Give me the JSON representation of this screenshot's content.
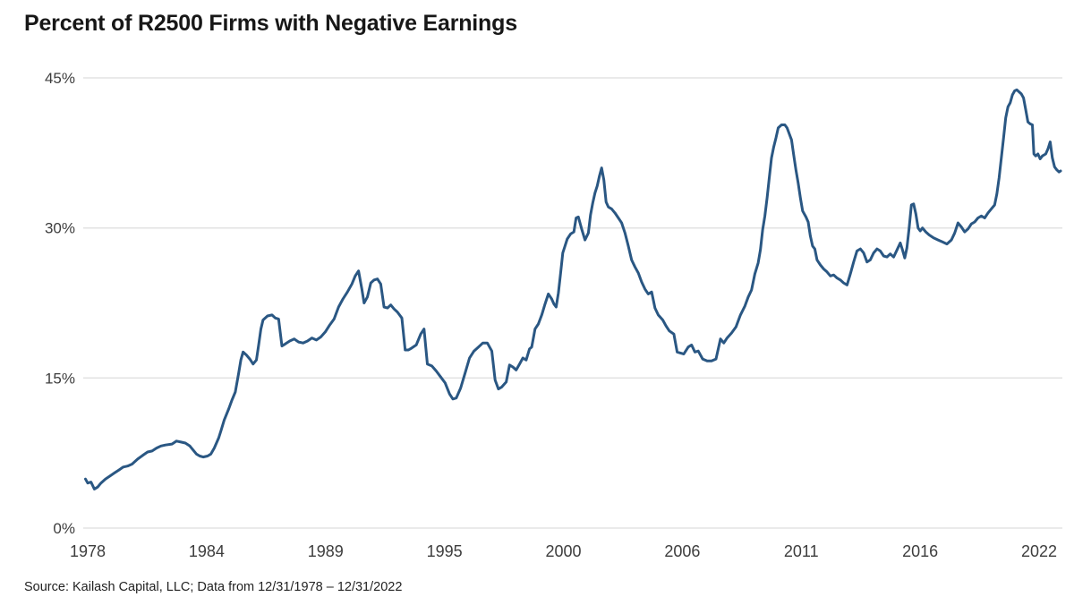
{
  "page": {
    "title": "Percent of R2500 Firms with Negative Earnings",
    "source": "Source: Kailash Capital, LLC; Data from 12/31/1978 – 12/31/2022"
  },
  "chart_data": {
    "type": "line",
    "title": "Percent of R2500 Firms with Negative Earnings",
    "series_name": "Percent of R2500 firms with negative earnings",
    "xlabel": "",
    "ylabel": "",
    "grid": "horizontal",
    "legend": "none",
    "line_color": "#2a5783",
    "grid_color": "#e3e3e3",
    "ylim": [
      0,
      45
    ],
    "xlim": [
      1978.9,
      2023.0
    ],
    "yticks": {
      "values": [
        0,
        15,
        30,
        45
      ],
      "labels": [
        "0%",
        "15%",
        "30%",
        "45%"
      ]
    },
    "xticks": {
      "labels": [
        "1978",
        "1984",
        "1989",
        "1995",
        "2000",
        "2006",
        "2011",
        "2016",
        "2022"
      ],
      "evenly_spaced": true
    },
    "points": [
      [
        1979.0,
        4.9
      ],
      [
        1979.1,
        4.5
      ],
      [
        1979.25,
        4.6
      ],
      [
        1979.4,
        3.9
      ],
      [
        1979.55,
        4.1
      ],
      [
        1979.7,
        4.5
      ],
      [
        1979.9,
        4.9
      ],
      [
        1980.1,
        5.2
      ],
      [
        1980.3,
        5.5
      ],
      [
        1980.5,
        5.8
      ],
      [
        1980.7,
        6.1
      ],
      [
        1980.9,
        6.2
      ],
      [
        1981.1,
        6.4
      ],
      [
        1981.35,
        6.9
      ],
      [
        1981.6,
        7.3
      ],
      [
        1981.8,
        7.6
      ],
      [
        1982.0,
        7.7
      ],
      [
        1982.2,
        8.0
      ],
      [
        1982.4,
        8.2
      ],
      [
        1982.6,
        8.3
      ],
      [
        1982.9,
        8.4
      ],
      [
        1983.1,
        8.7
      ],
      [
        1983.3,
        8.6
      ],
      [
        1983.5,
        8.5
      ],
      [
        1983.7,
        8.2
      ],
      [
        1983.85,
        7.8
      ],
      [
        1984.0,
        7.4
      ],
      [
        1984.15,
        7.2
      ],
      [
        1984.3,
        7.1
      ],
      [
        1984.5,
        7.2
      ],
      [
        1984.65,
        7.4
      ],
      [
        1984.8,
        8.0
      ],
      [
        1985.0,
        9.0
      ],
      [
        1985.1,
        9.7
      ],
      [
        1985.25,
        10.8
      ],
      [
        1985.45,
        11.9
      ],
      [
        1985.6,
        12.8
      ],
      [
        1985.75,
        13.6
      ],
      [
        1985.9,
        15.5
      ],
      [
        1986.0,
        16.8
      ],
      [
        1986.1,
        17.6
      ],
      [
        1986.25,
        17.3
      ],
      [
        1986.4,
        16.9
      ],
      [
        1986.55,
        16.4
      ],
      [
        1986.7,
        16.8
      ],
      [
        1986.8,
        18.3
      ],
      [
        1986.9,
        19.9
      ],
      [
        1987.0,
        20.8
      ],
      [
        1987.2,
        21.2
      ],
      [
        1987.4,
        21.3
      ],
      [
        1987.55,
        21.0
      ],
      [
        1987.7,
        20.9
      ],
      [
        1987.85,
        18.2
      ],
      [
        1988.0,
        18.4
      ],
      [
        1988.2,
        18.7
      ],
      [
        1988.4,
        18.9
      ],
      [
        1988.6,
        18.6
      ],
      [
        1988.8,
        18.5
      ],
      [
        1989.0,
        18.7
      ],
      [
        1989.2,
        19.0
      ],
      [
        1989.4,
        18.8
      ],
      [
        1989.6,
        19.1
      ],
      [
        1989.8,
        19.6
      ],
      [
        1990.0,
        20.3
      ],
      [
        1990.2,
        20.9
      ],
      [
        1990.4,
        22.1
      ],
      [
        1990.6,
        22.9
      ],
      [
        1990.8,
        23.6
      ],
      [
        1991.0,
        24.4
      ],
      [
        1991.15,
        25.2
      ],
      [
        1991.3,
        25.7
      ],
      [
        1991.45,
        23.9
      ],
      [
        1991.55,
        22.5
      ],
      [
        1991.7,
        23.1
      ],
      [
        1991.85,
        24.5
      ],
      [
        1992.0,
        24.8
      ],
      [
        1992.15,
        24.9
      ],
      [
        1992.3,
        24.4
      ],
      [
        1992.45,
        22.1
      ],
      [
        1992.6,
        22.0
      ],
      [
        1992.75,
        22.3
      ],
      [
        1992.9,
        21.9
      ],
      [
        1993.05,
        21.6
      ],
      [
        1993.25,
        21.0
      ],
      [
        1993.4,
        17.8
      ],
      [
        1993.55,
        17.8
      ],
      [
        1993.7,
        18.0
      ],
      [
        1993.9,
        18.3
      ],
      [
        1994.1,
        19.4
      ],
      [
        1994.25,
        19.9
      ],
      [
        1994.4,
        16.4
      ],
      [
        1994.6,
        16.2
      ],
      [
        1994.8,
        15.7
      ],
      [
        1995.0,
        15.1
      ],
      [
        1995.2,
        14.5
      ],
      [
        1995.4,
        13.4
      ],
      [
        1995.55,
        12.9
      ],
      [
        1995.7,
        13.0
      ],
      [
        1995.9,
        14.0
      ],
      [
        1996.1,
        15.5
      ],
      [
        1996.3,
        17.0
      ],
      [
        1996.5,
        17.7
      ],
      [
        1996.7,
        18.1
      ],
      [
        1996.9,
        18.5
      ],
      [
        1997.1,
        18.5
      ],
      [
        1997.3,
        17.7
      ],
      [
        1997.45,
        14.8
      ],
      [
        1997.6,
        13.9
      ],
      [
        1997.75,
        14.1
      ],
      [
        1997.95,
        14.6
      ],
      [
        1998.1,
        16.3
      ],
      [
        1998.25,
        16.1
      ],
      [
        1998.4,
        15.8
      ],
      [
        1998.55,
        16.4
      ],
      [
        1998.7,
        17.0
      ],
      [
        1998.85,
        16.8
      ],
      [
        1999.0,
        17.9
      ],
      [
        1999.1,
        18.1
      ],
      [
        1999.25,
        19.9
      ],
      [
        1999.4,
        20.4
      ],
      [
        1999.55,
        21.3
      ],
      [
        1999.7,
        22.4
      ],
      [
        1999.85,
        23.4
      ],
      [
        2000.0,
        22.9
      ],
      [
        2000.1,
        22.4
      ],
      [
        2000.2,
        22.1
      ],
      [
        2000.3,
        23.5
      ],
      [
        2000.4,
        25.5
      ],
      [
        2000.5,
        27.5
      ],
      [
        2000.6,
        28.2
      ],
      [
        2000.7,
        28.9
      ],
      [
        2000.85,
        29.4
      ],
      [
        2001.0,
        29.6
      ],
      [
        2001.1,
        31.0
      ],
      [
        2001.2,
        31.1
      ],
      [
        2001.35,
        29.9
      ],
      [
        2001.5,
        28.8
      ],
      [
        2001.65,
        29.5
      ],
      [
        2001.75,
        31.3
      ],
      [
        2001.85,
        32.5
      ],
      [
        2001.95,
        33.5
      ],
      [
        2002.05,
        34.2
      ],
      [
        2002.15,
        35.2
      ],
      [
        2002.25,
        36.0
      ],
      [
        2002.35,
        34.8
      ],
      [
        2002.45,
        32.6
      ],
      [
        2002.55,
        32.1
      ],
      [
        2002.7,
        31.9
      ],
      [
        2002.85,
        31.5
      ],
      [
        2003.0,
        31.0
      ],
      [
        2003.15,
        30.5
      ],
      [
        2003.3,
        29.5
      ],
      [
        2003.45,
        28.2
      ],
      [
        2003.6,
        26.8
      ],
      [
        2003.75,
        26.1
      ],
      [
        2003.9,
        25.5
      ],
      [
        2004.05,
        24.6
      ],
      [
        2004.2,
        23.9
      ],
      [
        2004.35,
        23.4
      ],
      [
        2004.5,
        23.6
      ],
      [
        2004.65,
        22.0
      ],
      [
        2004.8,
        21.3
      ],
      [
        2005.0,
        20.8
      ],
      [
        2005.15,
        20.2
      ],
      [
        2005.3,
        19.7
      ],
      [
        2005.5,
        19.4
      ],
      [
        2005.65,
        17.6
      ],
      [
        2005.8,
        17.5
      ],
      [
        2005.95,
        17.4
      ],
      [
        2006.15,
        18.1
      ],
      [
        2006.3,
        18.3
      ],
      [
        2006.45,
        17.6
      ],
      [
        2006.6,
        17.7
      ],
      [
        2006.8,
        16.9
      ],
      [
        2007.0,
        16.7
      ],
      [
        2007.2,
        16.7
      ],
      [
        2007.4,
        16.9
      ],
      [
        2007.6,
        18.9
      ],
      [
        2007.75,
        18.5
      ],
      [
        2007.9,
        19.0
      ],
      [
        2008.1,
        19.5
      ],
      [
        2008.3,
        20.1
      ],
      [
        2008.5,
        21.3
      ],
      [
        2008.7,
        22.2
      ],
      [
        2008.85,
        23.1
      ],
      [
        2009.0,
        23.8
      ],
      [
        2009.15,
        25.4
      ],
      [
        2009.3,
        26.5
      ],
      [
        2009.4,
        27.8
      ],
      [
        2009.5,
        29.8
      ],
      [
        2009.6,
        31.2
      ],
      [
        2009.7,
        33.0
      ],
      [
        2009.8,
        35.0
      ],
      [
        2009.9,
        37.0
      ],
      [
        2010.0,
        38.1
      ],
      [
        2010.1,
        39.0
      ],
      [
        2010.2,
        40.0
      ],
      [
        2010.35,
        40.3
      ],
      [
        2010.5,
        40.3
      ],
      [
        2010.6,
        40.0
      ],
      [
        2010.7,
        39.4
      ],
      [
        2010.8,
        38.8
      ],
      [
        2010.9,
        37.3
      ],
      [
        2011.0,
        35.8
      ],
      [
        2011.1,
        34.5
      ],
      [
        2011.2,
        33.0
      ],
      [
        2011.3,
        31.7
      ],
      [
        2011.45,
        31.1
      ],
      [
        2011.55,
        30.6
      ],
      [
        2011.65,
        29.2
      ],
      [
        2011.75,
        28.2
      ],
      [
        2011.85,
        27.9
      ],
      [
        2011.95,
        26.8
      ],
      [
        2012.1,
        26.3
      ],
      [
        2012.25,
        25.9
      ],
      [
        2012.4,
        25.6
      ],
      [
        2012.55,
        25.2
      ],
      [
        2012.7,
        25.3
      ],
      [
        2012.85,
        25.0
      ],
      [
        2013.0,
        24.8
      ],
      [
        2013.15,
        24.5
      ],
      [
        2013.3,
        24.3
      ],
      [
        2013.45,
        25.4
      ],
      [
        2013.6,
        26.6
      ],
      [
        2013.75,
        27.7
      ],
      [
        2013.9,
        27.9
      ],
      [
        2014.05,
        27.5
      ],
      [
        2014.2,
        26.6
      ],
      [
        2014.35,
        26.8
      ],
      [
        2014.5,
        27.5
      ],
      [
        2014.65,
        27.9
      ],
      [
        2014.8,
        27.7
      ],
      [
        2014.95,
        27.2
      ],
      [
        2015.1,
        27.1
      ],
      [
        2015.25,
        27.4
      ],
      [
        2015.4,
        27.1
      ],
      [
        2015.55,
        27.8
      ],
      [
        2015.7,
        28.5
      ],
      [
        2015.8,
        27.8
      ],
      [
        2015.9,
        27.0
      ],
      [
        2016.0,
        28.0
      ],
      [
        2016.1,
        30.0
      ],
      [
        2016.2,
        32.3
      ],
      [
        2016.3,
        32.4
      ],
      [
        2016.4,
        31.4
      ],
      [
        2016.5,
        30.0
      ],
      [
        2016.6,
        29.7
      ],
      [
        2016.7,
        30.0
      ],
      [
        2016.85,
        29.6
      ],
      [
        2017.0,
        29.3
      ],
      [
        2017.2,
        29.0
      ],
      [
        2017.4,
        28.8
      ],
      [
        2017.6,
        28.6
      ],
      [
        2017.8,
        28.4
      ],
      [
        2018.0,
        28.8
      ],
      [
        2018.15,
        29.5
      ],
      [
        2018.3,
        30.5
      ],
      [
        2018.45,
        30.1
      ],
      [
        2018.6,
        29.6
      ],
      [
        2018.75,
        29.9
      ],
      [
        2018.9,
        30.4
      ],
      [
        2019.05,
        30.6
      ],
      [
        2019.2,
        31.0
      ],
      [
        2019.35,
        31.2
      ],
      [
        2019.5,
        31.0
      ],
      [
        2019.65,
        31.5
      ],
      [
        2019.8,
        31.9
      ],
      [
        2019.95,
        32.3
      ],
      [
        2020.05,
        33.4
      ],
      [
        2020.15,
        35.0
      ],
      [
        2020.25,
        37.0
      ],
      [
        2020.35,
        39.0
      ],
      [
        2020.45,
        41.0
      ],
      [
        2020.55,
        42.1
      ],
      [
        2020.65,
        42.5
      ],
      [
        2020.75,
        43.3
      ],
      [
        2020.85,
        43.7
      ],
      [
        2020.95,
        43.8
      ],
      [
        2021.05,
        43.6
      ],
      [
        2021.15,
        43.4
      ],
      [
        2021.25,
        43.0
      ],
      [
        2021.35,
        41.8
      ],
      [
        2021.45,
        40.6
      ],
      [
        2021.55,
        40.4
      ],
      [
        2021.65,
        40.3
      ],
      [
        2021.72,
        37.4
      ],
      [
        2021.8,
        37.2
      ],
      [
        2021.9,
        37.4
      ],
      [
        2022.0,
        36.9
      ],
      [
        2022.1,
        37.2
      ],
      [
        2022.25,
        37.4
      ],
      [
        2022.35,
        37.9
      ],
      [
        2022.45,
        38.6
      ],
      [
        2022.55,
        37.0
      ],
      [
        2022.65,
        36.1
      ],
      [
        2022.75,
        35.8
      ],
      [
        2022.85,
        35.6
      ],
      [
        2022.92,
        35.7
      ]
    ],
    "source": "Source: Kailash Capital, LLC; Data from 12/31/1978 – 12/31/2022"
  }
}
